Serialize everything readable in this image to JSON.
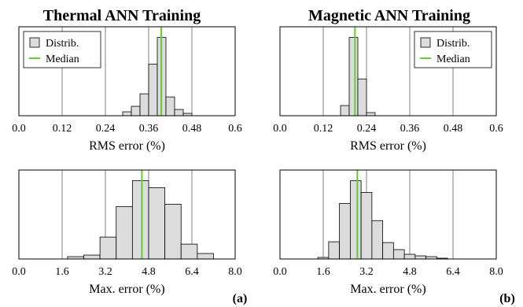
{
  "colors": {
    "bar_fill": "#dcdcdc",
    "bar_stroke": "#000000",
    "median": "#66cc33",
    "grid": "#808080"
  },
  "columns": [
    {
      "title": "Thermal ANN Training",
      "panel_label": "(a)"
    },
    {
      "title": "Magnetic ANN Training",
      "panel_label": "(b)"
    }
  ],
  "chart_data": [
    {
      "type": "bar",
      "title": "Thermal ANN Training",
      "xlabel": "RMS error (%)",
      "xlim": [
        0.0,
        0.6
      ],
      "xticks": [
        "0.0",
        "0.12",
        "0.24",
        "0.36",
        "0.48",
        "0.6"
      ],
      "grid": true,
      "legend": {
        "position": "top-left",
        "entries": [
          "Distrib.",
          "Median"
        ]
      },
      "bins": [
        {
          "x0": 0.288,
          "x1": 0.312,
          "value": 0.05
        },
        {
          "x0": 0.312,
          "x1": 0.336,
          "value": 0.12
        },
        {
          "x0": 0.336,
          "x1": 0.36,
          "value": 0.28
        },
        {
          "x0": 0.36,
          "x1": 0.384,
          "value": 0.66
        },
        {
          "x0": 0.384,
          "x1": 0.408,
          "value": 1.0
        },
        {
          "x0": 0.408,
          "x1": 0.432,
          "value": 0.24
        },
        {
          "x0": 0.432,
          "x1": 0.456,
          "value": 0.08
        },
        {
          "x0": 0.456,
          "x1": 0.48,
          "value": 0.03
        }
      ],
      "median": 0.395
    },
    {
      "type": "bar",
      "title": "Magnetic ANN Training",
      "xlabel": "RMS error (%)",
      "xlim": [
        0.0,
        0.6
      ],
      "xticks": [
        "0.0",
        "0.12",
        "0.24",
        "0.36",
        "0.48",
        "0.6"
      ],
      "grid": true,
      "legend": {
        "position": "top-right",
        "entries": [
          "Distrib.",
          "Median"
        ]
      },
      "bins": [
        {
          "x0": 0.168,
          "x1": 0.192,
          "value": 0.13
        },
        {
          "x0": 0.192,
          "x1": 0.216,
          "value": 1.0
        },
        {
          "x0": 0.216,
          "x1": 0.24,
          "value": 0.47
        },
        {
          "x0": 0.24,
          "x1": 0.264,
          "value": 0.04
        }
      ],
      "median": 0.208
    },
    {
      "type": "bar",
      "xlabel": "Max. error (%)",
      "xlim": [
        0.0,
        8.0
      ],
      "xticks": [
        "0.0",
        "1.6",
        "3.2",
        "4.8",
        "6.4",
        "8.0"
      ],
      "grid": true,
      "bins": [
        {
          "x0": 1.8,
          "x1": 2.4,
          "value": 0.03
        },
        {
          "x0": 2.4,
          "x1": 3.0,
          "value": 0.05
        },
        {
          "x0": 3.0,
          "x1": 3.6,
          "value": 0.28
        },
        {
          "x0": 3.6,
          "x1": 4.2,
          "value": 0.67
        },
        {
          "x0": 4.2,
          "x1": 4.8,
          "value": 1.0
        },
        {
          "x0": 4.8,
          "x1": 5.4,
          "value": 0.91
        },
        {
          "x0": 5.4,
          "x1": 6.0,
          "value": 0.7
        },
        {
          "x0": 6.0,
          "x1": 6.6,
          "value": 0.19
        },
        {
          "x0": 6.6,
          "x1": 7.2,
          "value": 0.07
        }
      ],
      "median": 4.55
    },
    {
      "type": "bar",
      "xlabel": "Max. error (%)",
      "xlim": [
        0.0,
        8.0
      ],
      "xticks": [
        "0.0",
        "1.6",
        "3.2",
        "4.8",
        "6.4",
        "8.0"
      ],
      "grid": true,
      "bins": [
        {
          "x0": 1.4,
          "x1": 1.8,
          "value": 0.02
        },
        {
          "x0": 1.8,
          "x1": 2.2,
          "value": 0.22
        },
        {
          "x0": 2.2,
          "x1": 2.6,
          "value": 0.71
        },
        {
          "x0": 2.6,
          "x1": 3.0,
          "value": 1.0
        },
        {
          "x0": 3.0,
          "x1": 3.4,
          "value": 0.85
        },
        {
          "x0": 3.4,
          "x1": 3.8,
          "value": 0.49
        },
        {
          "x0": 3.8,
          "x1": 4.2,
          "value": 0.21
        },
        {
          "x0": 4.2,
          "x1": 4.6,
          "value": 0.12
        },
        {
          "x0": 4.6,
          "x1": 5.0,
          "value": 0.06
        },
        {
          "x0": 5.0,
          "x1": 5.4,
          "value": 0.04
        },
        {
          "x0": 5.4,
          "x1": 5.8,
          "value": 0.03
        },
        {
          "x0": 5.8,
          "x1": 6.2,
          "value": 0.01
        }
      ],
      "median": 2.86
    }
  ]
}
